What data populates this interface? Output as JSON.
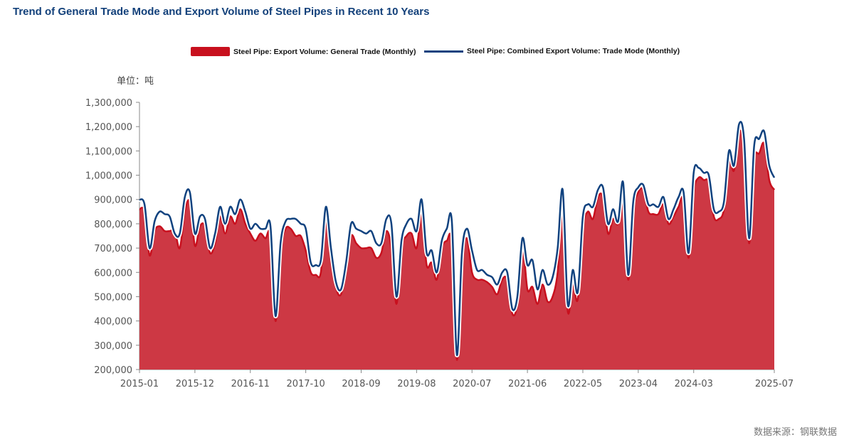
{
  "title": "Trend of General Trade Mode and Export Volume of Steel Pipes in Recent 10 Years",
  "unit_label": "单位：吨",
  "source_label": "数据来源：钢联数据",
  "colors": {
    "area": "#c8101e",
    "area_fill": "#cd3844",
    "line": "#10427f",
    "axis": "#888888"
  },
  "legend": [
    {
      "label": "Steel Pipe: Export Volume: General Trade (Monthly)",
      "type": "area"
    },
    {
      "label": "Steel Pipe: Combined Export Volume: Trade Mode (Monthly)",
      "type": "line"
    }
  ],
  "chart_data": {
    "type": "area",
    "title": "Trend of General Trade Mode and Export Volume of Steel Pipes in Recent 10 Years",
    "ylabel": "单位：吨",
    "ylim": [
      200000,
      1300000
    ],
    "yticks": [
      200000,
      300000,
      400000,
      500000,
      600000,
      700000,
      800000,
      900000,
      1000000,
      1100000,
      1200000,
      1300000
    ],
    "ytick_labels": [
      "200,000",
      "300,000",
      "400,000",
      "500,000",
      "600,000",
      "700,000",
      "800,000",
      "900,000",
      "1,000,000",
      "1,100,000",
      "1,200,000",
      "1,300,000"
    ],
    "x_start": "2015-01",
    "x_end": "2025-07",
    "xtick_labels": [
      "2015-01",
      "2015-12",
      "2016-11",
      "2017-10",
      "2018-09",
      "2019-08",
      "2020-07",
      "2021-06",
      "2022-05",
      "2023-04",
      "2024-03",
      "2025-07"
    ],
    "xtick_months": [
      0,
      11,
      22,
      33,
      44,
      55,
      66,
      77,
      88,
      99,
      110,
      126
    ],
    "series": [
      {
        "name": "Steel Pipe: Export Volume: General Trade (Monthly)",
        "type": "area",
        "values": [
          860000,
          850000,
          670000,
          770000,
          790000,
          770000,
          770000,
          770000,
          700000,
          850000,
          890000,
          710000,
          790000,
          790000,
          680000,
          720000,
          830000,
          760000,
          830000,
          800000,
          860000,
          800000,
          760000,
          730000,
          760000,
          740000,
          750000,
          400000,
          690000,
          780000,
          780000,
          750000,
          750000,
          690000,
          600000,
          590000,
          600000,
          830000,
          700000,
          540000,
          510000,
          620000,
          750000,
          720000,
          700000,
          700000,
          700000,
          660000,
          680000,
          770000,
          700000,
          470000,
          700000,
          750000,
          760000,
          700000,
          840000,
          630000,
          640000,
          570000,
          700000,
          730000,
          720000,
          240000,
          640000,
          740000,
          600000,
          570000,
          570000,
          560000,
          540000,
          510000,
          570000,
          570000,
          430000,
          470000,
          710000,
          530000,
          540000,
          470000,
          550000,
          480000,
          500000,
          600000,
          860000,
          440000,
          550000,
          490000,
          780000,
          850000,
          820000,
          910000,
          910000,
          760000,
          820000,
          800000,
          910000,
          570000,
          850000,
          930000,
          940000,
          850000,
          840000,
          840000,
          880000,
          800000,
          830000,
          870000,
          900000,
          660000,
          930000,
          990000,
          980000,
          970000,
          830000,
          820000,
          860000,
          1060000,
          1020000,
          1180000,
          1100000,
          720000,
          1060000,
          1090000,
          1130000,
          980000,
          940000
        ]
      },
      {
        "name": "Steel Pipe: Combined Export Volume: Trade Mode (Monthly)",
        "type": "line",
        "values": [
          900000,
          880000,
          700000,
          810000,
          850000,
          840000,
          830000,
          760000,
          760000,
          910000,
          930000,
          760000,
          830000,
          820000,
          700000,
          760000,
          870000,
          800000,
          870000,
          840000,
          900000,
          850000,
          780000,
          800000,
          780000,
          780000,
          790000,
          420000,
          720000,
          810000,
          820000,
          820000,
          800000,
          780000,
          640000,
          630000,
          650000,
          870000,
          700000,
          560000,
          530000,
          640000,
          800000,
          780000,
          770000,
          760000,
          770000,
          720000,
          720000,
          820000,
          800000,
          500000,
          730000,
          800000,
          820000,
          770000,
          900000,
          680000,
          690000,
          600000,
          730000,
          780000,
          810000,
          260000,
          680000,
          780000,
          690000,
          610000,
          610000,
          590000,
          580000,
          550000,
          600000,
          600000,
          450000,
          500000,
          740000,
          630000,
          650000,
          530000,
          610000,
          550000,
          580000,
          700000,
          940000,
          470000,
          610000,
          520000,
          830000,
          880000,
          870000,
          940000,
          950000,
          800000,
          860000,
          810000,
          970000,
          590000,
          890000,
          950000,
          960000,
          880000,
          880000,
          870000,
          910000,
          820000,
          860000,
          910000,
          930000,
          680000,
          1010000,
          1030000,
          1010000,
          1000000,
          860000,
          850000,
          890000,
          1100000,
          1040000,
          1210000,
          1150000,
          740000,
          1120000,
          1150000,
          1180000,
          1040000,
          990000
        ]
      }
    ]
  }
}
